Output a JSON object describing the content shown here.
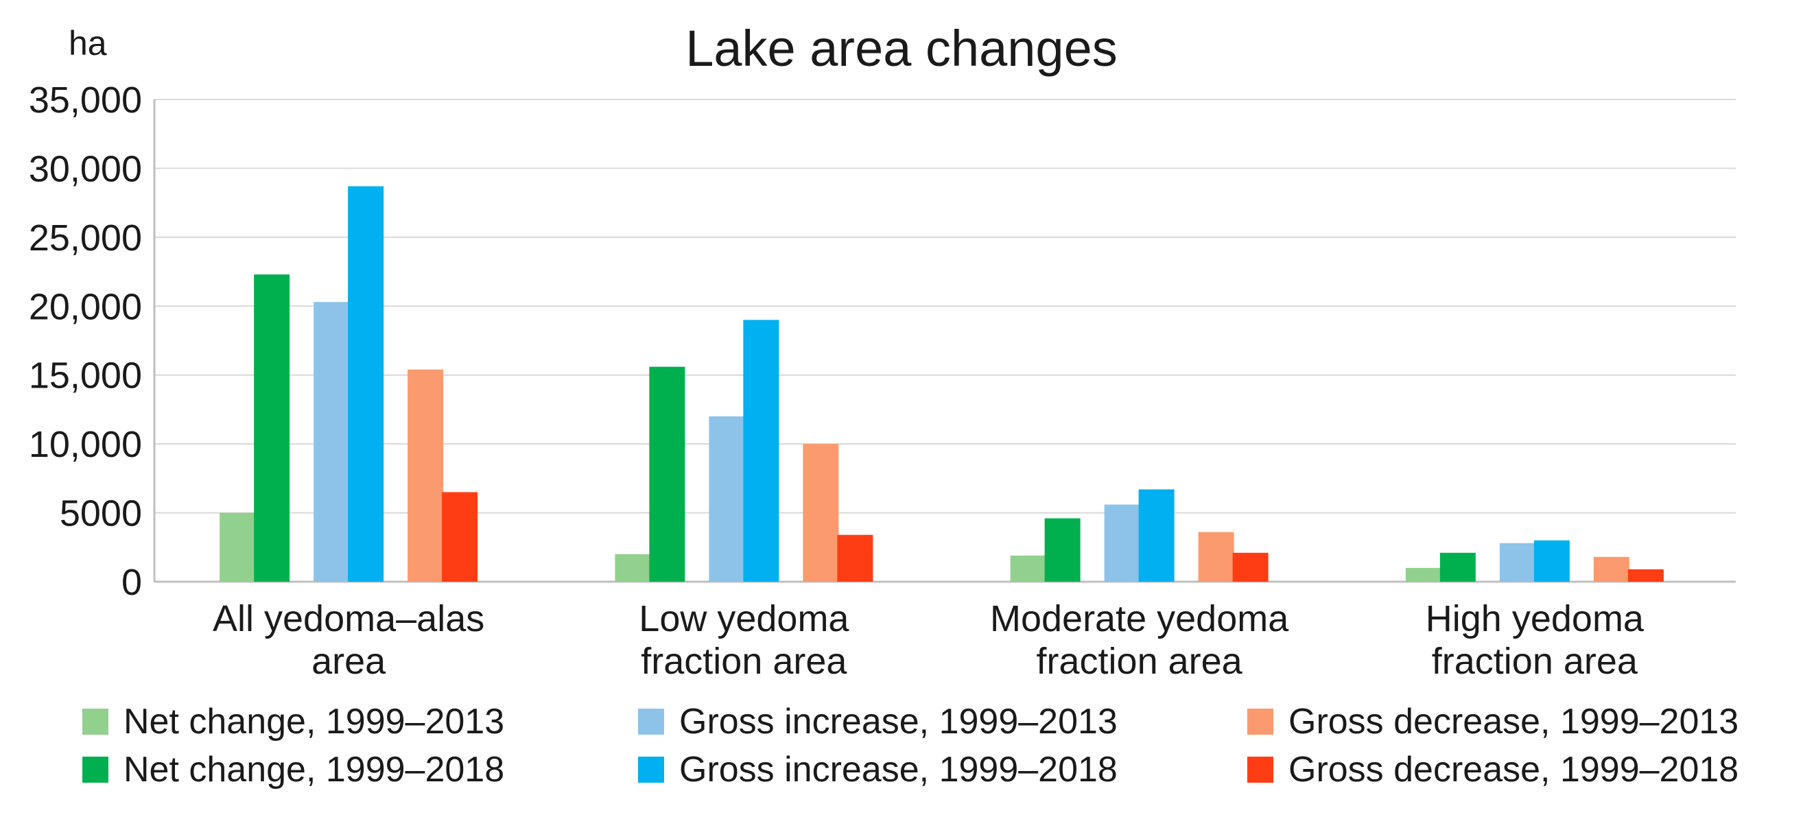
{
  "chart_data": {
    "type": "bar",
    "title": "Lake area changes",
    "ylabel": "ha",
    "xlabel": "",
    "ylim": [
      0,
      35000
    ],
    "yticks": [
      0,
      5000,
      10000,
      15000,
      20000,
      25000,
      30000,
      35000
    ],
    "ytick_labels": [
      "0",
      "5000",
      "10,000",
      "15,000",
      "20,000",
      "25,000",
      "30,000",
      "35,000"
    ],
    "grid": true,
    "legend_position": "bottom",
    "categories": [
      [
        "All yedoma–alas",
        "area"
      ],
      [
        "Low yedoma",
        "fraction area"
      ],
      [
        "Moderate yedoma",
        "fraction area"
      ],
      [
        "High yedoma",
        "fraction area"
      ]
    ],
    "series": [
      {
        "name": "Net change, 1999–2013",
        "color": "#92d08e",
        "values": [
          5000,
          2000,
          1900,
          1000
        ]
      },
      {
        "name": "Net change, 1999–2018",
        "color": "#00b04f",
        "values": [
          22300,
          15600,
          4600,
          2100
        ]
      },
      {
        "name": "Gross increase, 1999–2013",
        "color": "#8ec3e9",
        "values": [
          20300,
          12000,
          5600,
          2800
        ]
      },
      {
        "name": "Gross increase, 1999–2018",
        "color": "#00b0f0",
        "values": [
          28700,
          19000,
          6700,
          3000
        ]
      },
      {
        "name": "Gross decrease, 1999–2013",
        "color": "#fb9a6e",
        "values": [
          15400,
          10000,
          3600,
          1800
        ]
      },
      {
        "name": "Gross decrease, 1999–2018",
        "color": "#ff3d14",
        "values": [
          6500,
          3400,
          2100,
          900
        ]
      }
    ]
  }
}
